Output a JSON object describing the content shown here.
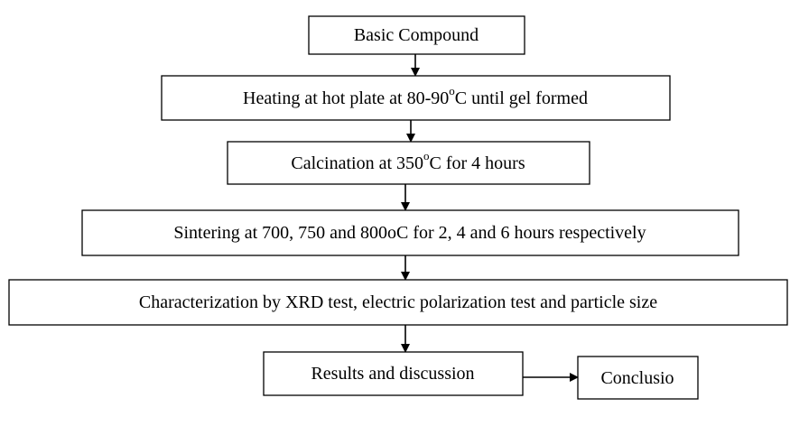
{
  "nodes": [
    {
      "label": [
        "Basic Compound"
      ]
    },
    {
      "label": [
        "Heating at hot plate at 80-90",
        "o",
        "C until gel formed"
      ]
    },
    {
      "label": [
        "Calcination at 350",
        "o",
        "C for 4 hours"
      ]
    },
    {
      "label": [
        "Sintering at 700, 750 and 800oC for 2, 4 and 6 hours respectively"
      ]
    },
    {
      "label": [
        "Characterization by XRD test, electric polarization test and particle size"
      ]
    },
    {
      "label": [
        "Results and discussion"
      ]
    },
    {
      "label": [
        "Conclusio"
      ]
    }
  ]
}
